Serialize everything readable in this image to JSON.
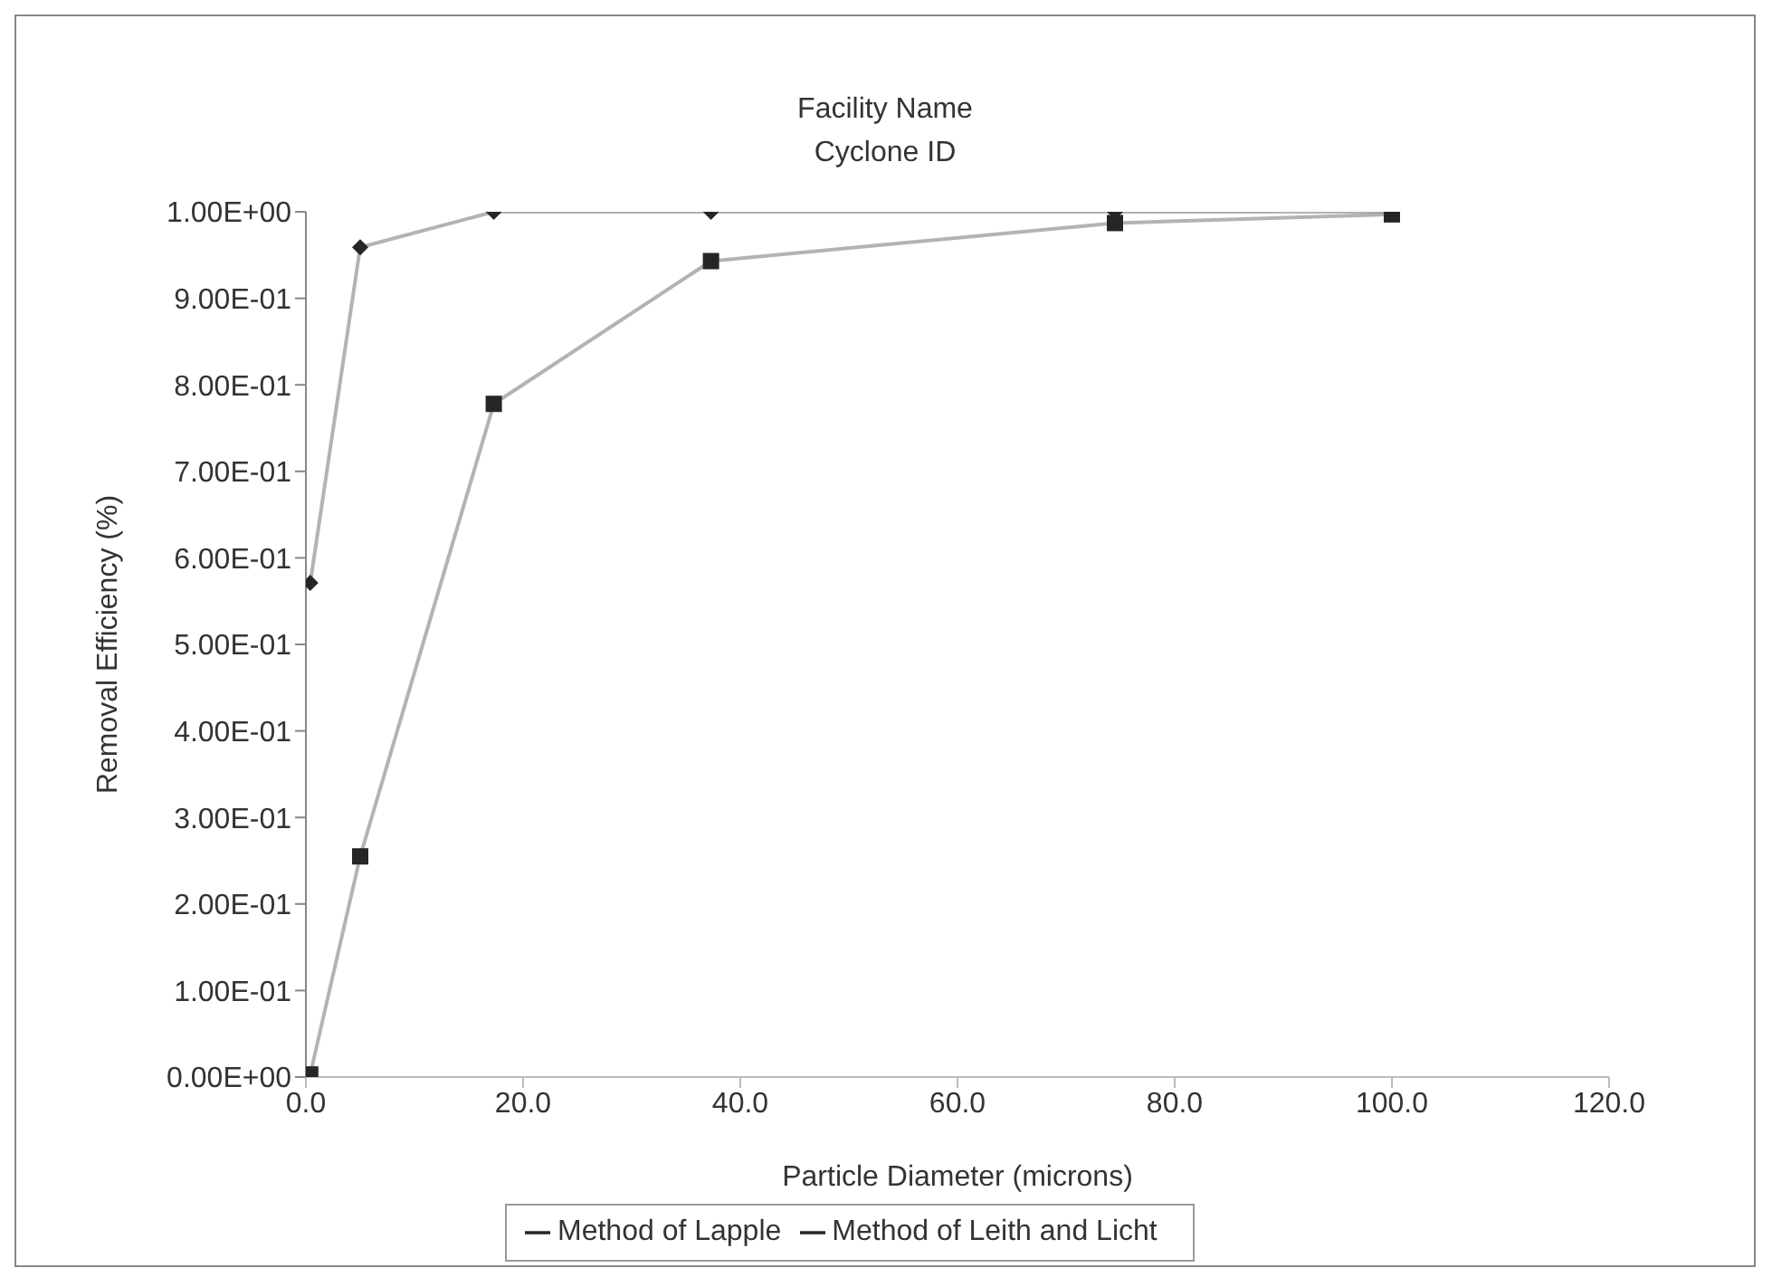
{
  "chart_data": {
    "type": "line",
    "title": "Facility Name",
    "subtitle": "Cyclone ID",
    "xlabel": "Particle Diameter (microns)",
    "ylabel": "Removal Efficiency (%)",
    "xlim": [
      0,
      120
    ],
    "xticks": [
      {
        "value": 0,
        "label": "0.0"
      },
      {
        "value": 20,
        "label": "20.0"
      },
      {
        "value": 40,
        "label": "40.0"
      },
      {
        "value": 60,
        "label": "60.0"
      },
      {
        "value": 80,
        "label": "80.0"
      },
      {
        "value": 100,
        "label": "100.0"
      },
      {
        "value": 120,
        "label": "120.0"
      }
    ],
    "ylim": [
      0,
      1
    ],
    "yticks": [
      {
        "value": 0,
        "label": "0.00E+00"
      },
      {
        "value": 0.1,
        "label": "1.00E-01"
      },
      {
        "value": 0.2,
        "label": "2.00E-01"
      },
      {
        "value": 0.3,
        "label": "3.00E-01"
      },
      {
        "value": 0.4,
        "label": "4.00E-01"
      },
      {
        "value": 0.5,
        "label": "5.00E-01"
      },
      {
        "value": 0.6,
        "label": "6.00E-01"
      },
      {
        "value": 0.7,
        "label": "7.00E-01"
      },
      {
        "value": 0.8,
        "label": "8.00E-01"
      },
      {
        "value": 0.9,
        "label": "9.00E-01"
      },
      {
        "value": 1,
        "label": "1.00E+00"
      }
    ],
    "grid": false,
    "legend": "bottom",
    "line_style": "solid",
    "series": [
      {
        "name": "Method of Lapple",
        "color": "#262626",
        "marker": "square",
        "x": [
          0.4,
          5.0,
          17.3,
          37.3,
          74.5,
          100
        ],
        "values": [
          0.003,
          0.255,
          0.778,
          0.943,
          0.987,
          0.997
        ]
      },
      {
        "name": "Method of Leith and Licht",
        "color": "#262626",
        "marker": "diamond",
        "x": [
          0.4,
          5.0,
          17.3,
          37.3,
          74.5,
          100
        ],
        "values": [
          0.571,
          0.959,
          1.0,
          1.0,
          1.0,
          1.0
        ]
      }
    ]
  }
}
